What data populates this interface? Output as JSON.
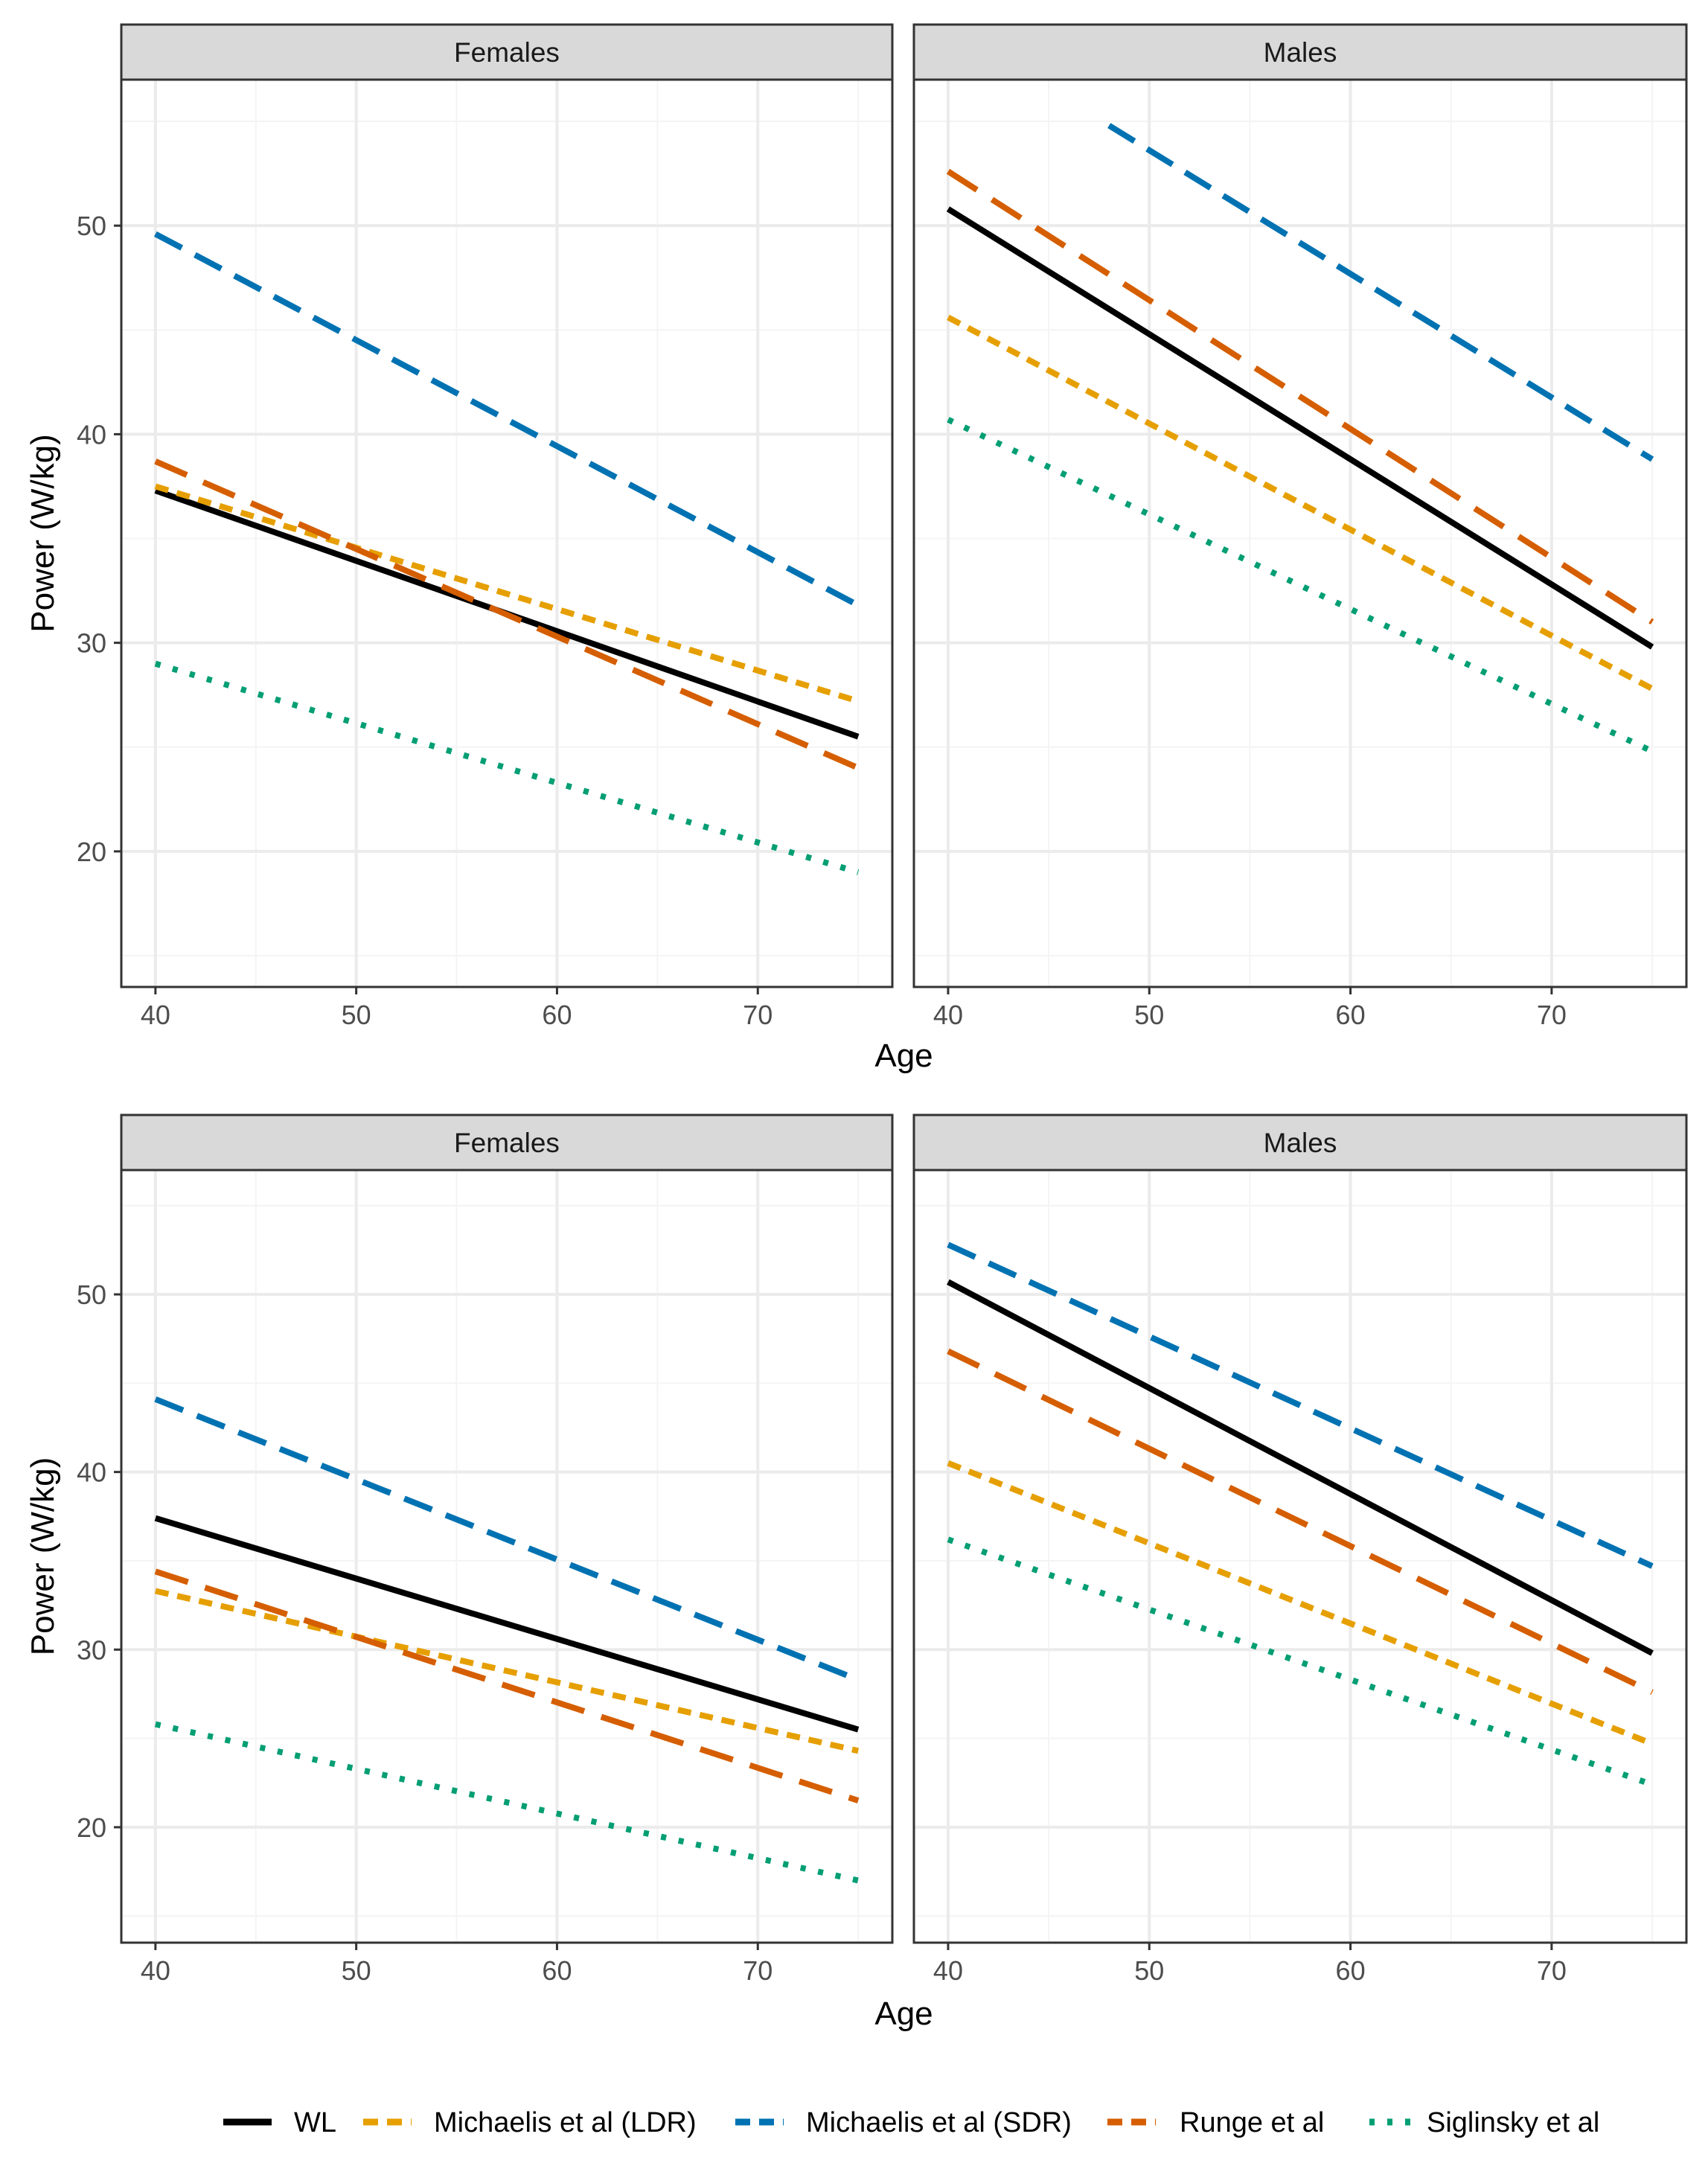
{
  "colors": {
    "WL": "#000000",
    "LDR": "#E69F00",
    "SDR": "#0072B2",
    "Runge": "#D55E00",
    "Siglinsky": "#009E73",
    "strip": "#d9d9d9",
    "grid": "#ebebeb"
  },
  "legend": {
    "items": [
      {
        "key": "WL",
        "label": "WL"
      },
      {
        "key": "LDR",
        "label": "Michaelis et al (LDR)"
      },
      {
        "key": "SDR",
        "label": "Michaelis et al (SDR)"
      },
      {
        "key": "Runge",
        "label": "Runge et al"
      },
      {
        "key": "Siglinsky",
        "label": "Siglinsky et al"
      }
    ]
  },
  "chart_data": [
    {
      "type": "line",
      "xlabel": "Age",
      "ylabel": "Power (W/kg)",
      "xlim": [
        38.3,
        76.7
      ],
      "ylim": [
        13.5,
        57
      ],
      "x_ticks": [
        "40",
        "50",
        "60",
        "70"
      ],
      "y_ticks": [
        "20",
        "30",
        "40",
        "50"
      ],
      "panels": [
        {
          "title": "Females",
          "series": [
            {
              "key": "WL",
              "name": "WL",
              "x": [
                40,
                75
              ],
              "y": [
                37.3,
                25.5
              ]
            },
            {
              "key": "LDR",
              "name": "Michaelis et al (LDR)",
              "x": [
                40,
                75
              ],
              "y": [
                37.5,
                27.2
              ]
            },
            {
              "key": "SDR",
              "name": "Michaelis et al (SDR)",
              "x": [
                40,
                75
              ],
              "y": [
                49.6,
                31.8
              ]
            },
            {
              "key": "Runge",
              "name": "Runge et al",
              "x": [
                40,
                75
              ],
              "y": [
                38.7,
                24.0
              ]
            },
            {
              "key": "Siglinsky",
              "name": "Siglinsky et al",
              "x": [
                40,
                75
              ],
              "y": [
                29.0,
                19.0
              ]
            }
          ]
        },
        {
          "title": "Males",
          "series": [
            {
              "key": "WL",
              "name": "WL",
              "x": [
                40,
                75
              ],
              "y": [
                50.8,
                29.8
              ]
            },
            {
              "key": "LDR",
              "name": "Michaelis et al (LDR)",
              "x": [
                40,
                75
              ],
              "y": [
                45.6,
                27.8
              ]
            },
            {
              "key": "SDR",
              "name": "Michaelis et al (SDR)",
              "x": [
                48,
                75
              ],
              "y": [
                54.8,
                38.8
              ]
            },
            {
              "key": "Runge",
              "name": "Runge et al",
              "x": [
                40,
                75
              ],
              "y": [
                52.6,
                31.0
              ]
            },
            {
              "key": "Siglinsky",
              "name": "Siglinsky et al",
              "x": [
                40,
                75
              ],
              "y": [
                40.7,
                24.8
              ]
            }
          ]
        }
      ]
    },
    {
      "type": "line",
      "xlabel": "Age",
      "ylabel": "Power (W/kg)",
      "xlim": [
        38.3,
        76.7
      ],
      "ylim": [
        13.5,
        57
      ],
      "x_ticks": [
        "40",
        "50",
        "60",
        "70"
      ],
      "y_ticks": [
        "20",
        "30",
        "40",
        "50"
      ],
      "panels": [
        {
          "title": "Females",
          "series": [
            {
              "key": "WL",
              "name": "WL",
              "x": [
                40,
                75
              ],
              "y": [
                37.4,
                25.5
              ]
            },
            {
              "key": "LDR",
              "name": "Michaelis et al (LDR)",
              "x": [
                40,
                75
              ],
              "y": [
                33.3,
                24.3
              ]
            },
            {
              "key": "SDR",
              "name": "Michaelis et al (SDR)",
              "x": [
                40,
                75
              ],
              "y": [
                44.1,
                28.3
              ]
            },
            {
              "key": "Runge",
              "name": "Runge et al",
              "x": [
                40,
                75
              ],
              "y": [
                34.4,
                21.5
              ]
            },
            {
              "key": "Siglinsky",
              "name": "Siglinsky et al",
              "x": [
                40,
                75
              ],
              "y": [
                25.8,
                17.0
              ]
            }
          ]
        },
        {
          "title": "Males",
          "series": [
            {
              "key": "WL",
              "name": "WL",
              "x": [
                40,
                75
              ],
              "y": [
                50.7,
                29.8
              ]
            },
            {
              "key": "LDR",
              "name": "Michaelis et al (LDR)",
              "x": [
                40,
                75
              ],
              "y": [
                40.5,
                24.7
              ]
            },
            {
              "key": "SDR",
              "name": "Michaelis et al (SDR)",
              "x": [
                40,
                75
              ],
              "y": [
                52.8,
                34.7
              ]
            },
            {
              "key": "Runge",
              "name": "Runge et al",
              "x": [
                40,
                75
              ],
              "y": [
                46.8,
                27.6
              ]
            },
            {
              "key": "Siglinsky",
              "name": "Siglinsky et al",
              "x": [
                40,
                75
              ],
              "y": [
                36.2,
                22.4
              ]
            }
          ]
        }
      ]
    }
  ]
}
